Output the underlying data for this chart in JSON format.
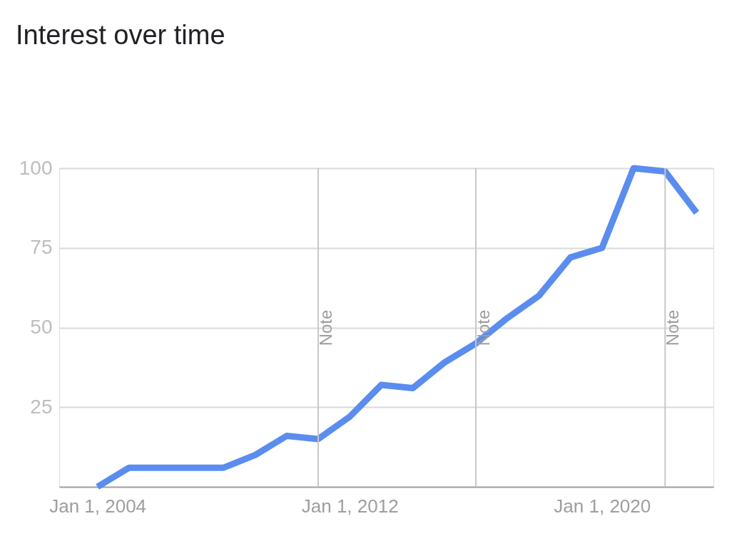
{
  "chart_data": {
    "type": "line",
    "title": "Interest over time",
    "x": [
      "2004-01-01",
      "2005-01-01",
      "2006-01-01",
      "2007-01-01",
      "2008-01-01",
      "2009-01-01",
      "2010-01-01",
      "2011-01-01",
      "2012-01-01",
      "2013-01-01",
      "2014-01-01",
      "2015-01-01",
      "2016-01-01",
      "2017-01-01",
      "2018-01-01",
      "2019-01-01",
      "2020-01-01",
      "2021-01-01",
      "2022-01-01",
      "2023-01-01"
    ],
    "series": [
      {
        "color": "#5b8def",
        "values": [
          0,
          6,
          6,
          6,
          6,
          10,
          16,
          15,
          22,
          32,
          31,
          39,
          45,
          53,
          60,
          72,
          75,
          100,
          99,
          86
        ]
      }
    ],
    "xlim": [
      "2002-10-15",
      "2023-07-15"
    ],
    "xticks": [
      {
        "value": "2004-01-01",
        "label": "Jan 1, 2004"
      },
      {
        "value": "2012-01-01",
        "label": "Jan 1, 2012"
      },
      {
        "value": "2020-01-01",
        "label": "Jan 1, 2020"
      }
    ],
    "ylim": [
      0,
      100
    ],
    "yticks": [
      25,
      50,
      75,
      100
    ],
    "ref_lines": [
      {
        "axis": "x",
        "value": "2011-01-01",
        "label": "Note"
      },
      {
        "axis": "x",
        "value": "2016-01-01",
        "label": "Note"
      },
      {
        "axis": "x",
        "value": "2022-01-01",
        "label": "Note"
      }
    ],
    "grid": "y",
    "legend": false,
    "marker": "none",
    "line_style": "solid"
  }
}
